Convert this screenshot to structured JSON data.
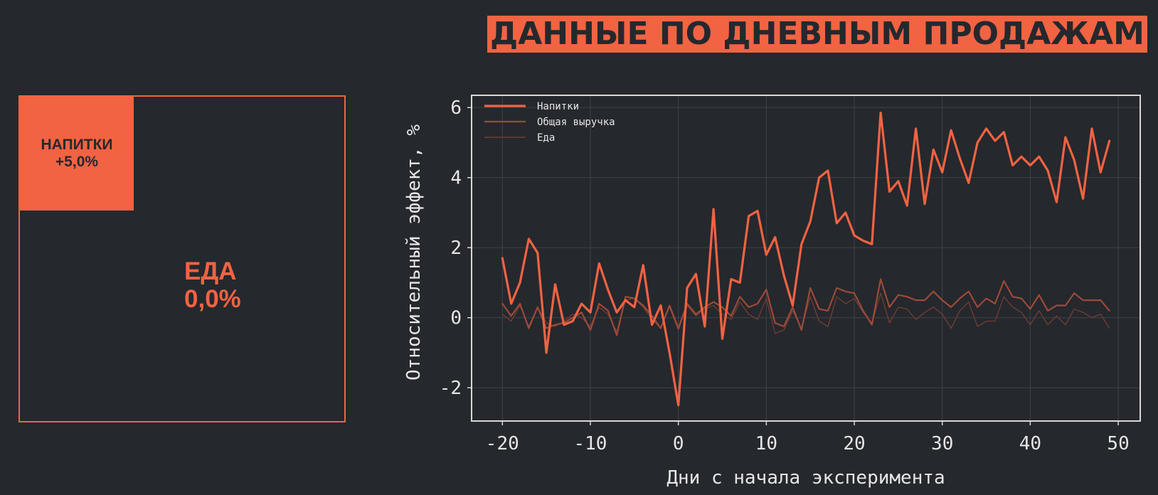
{
  "title": "ДАННЫЕ ПО ДНЕВНЫМ ПРОДАЖАМ",
  "treemap": {
    "small_tile": {
      "label": "НАПИТКИ",
      "value": "+5,0%"
    },
    "big_tile": {
      "label": "ЕДА",
      "value": "0,0%"
    }
  },
  "colors": {
    "background": "#25282d",
    "accent": "#f26342",
    "series_mid": "#9c4a39",
    "series_dim": "#6e3d33",
    "grid": "#4a4d52",
    "axes": "#d8d8d8",
    "text_light": "#e6e6e6"
  },
  "chart_data": {
    "type": "line",
    "xlabel": "Дни с начала эксперимента",
    "ylabel": "Относительный эффект, %",
    "xlim": [
      -23.5,
      52.5
    ],
    "ylim": [
      -2.95,
      6.35
    ],
    "xticks": [
      -20,
      -10,
      0,
      10,
      20,
      30,
      40,
      50
    ],
    "yticks": [
      -2,
      0,
      2,
      4,
      6
    ],
    "grid": true,
    "legend_position": "top-left",
    "x": [
      -20,
      -19,
      -18,
      -17,
      -16,
      -15,
      -14,
      -13,
      -12,
      -11,
      -10,
      -9,
      -8,
      -7,
      -6,
      -5,
      -4,
      -3,
      -2,
      -1,
      0,
      1,
      2,
      3,
      4,
      5,
      6,
      7,
      8,
      9,
      10,
      11,
      12,
      13,
      14,
      15,
      16,
      17,
      18,
      19,
      20,
      21,
      22,
      23,
      24,
      25,
      26,
      27,
      28,
      29,
      30,
      31,
      32,
      33,
      34,
      35,
      36,
      37,
      38,
      39,
      40,
      41,
      42,
      43,
      44,
      45,
      46,
      47,
      48,
      49
    ],
    "series": [
      {
        "name": "Напитки",
        "values": [
          1.7,
          0.4,
          1.0,
          2.25,
          1.85,
          -1.0,
          0.95,
          -0.2,
          -0.1,
          0.4,
          0.15,
          1.55,
          0.8,
          0.15,
          0.5,
          0.3,
          1.5,
          -0.2,
          0.35,
          -1.0,
          -2.5,
          0.85,
          1.25,
          -0.25,
          3.1,
          -0.6,
          1.1,
          1.0,
          2.9,
          3.05,
          1.8,
          2.3,
          1.2,
          0.35,
          2.1,
          2.75,
          4.0,
          4.2,
          2.7,
          3.0,
          2.35,
          2.2,
          2.1,
          5.85,
          3.6,
          3.9,
          3.2,
          5.4,
          3.25,
          4.8,
          4.15,
          5.35,
          4.55,
          3.85,
          5.0,
          5.4,
          5.05,
          5.3,
          4.35,
          4.6,
          4.35,
          4.6,
          4.2,
          3.3,
          5.15,
          4.5,
          3.4,
          5.4,
          4.15,
          5.05
        ]
      },
      {
        "name": "Общая выручка",
        "values": [
          0.4,
          0.05,
          0.4,
          -0.3,
          0.3,
          -0.3,
          -0.2,
          -0.15,
          0.0,
          0.15,
          -0.35,
          0.4,
          0.2,
          -0.5,
          0.6,
          0.55,
          0.35,
          0.05,
          -0.3,
          0.35,
          -0.3,
          0.4,
          0.1,
          0.3,
          0.45,
          0.3,
          0.05,
          0.6,
          0.3,
          0.4,
          0.8,
          -0.15,
          -0.25,
          0.3,
          -0.35,
          0.85,
          0.25,
          0.2,
          0.85,
          0.75,
          0.7,
          0.2,
          -0.2,
          1.1,
          0.3,
          0.65,
          0.6,
          0.5,
          0.5,
          0.75,
          0.5,
          0.3,
          0.55,
          0.75,
          0.3,
          0.55,
          0.4,
          1.05,
          0.6,
          0.55,
          0.25,
          0.65,
          0.2,
          0.35,
          0.35,
          0.7,
          0.5,
          0.5,
          0.5,
          0.2
        ]
      },
      {
        "name": "Еда",
        "values": [
          0.1,
          -0.1,
          0.35,
          -0.25,
          0.3,
          -0.15,
          -0.25,
          -0.1,
          0.1,
          0.0,
          -0.25,
          0.3,
          0.1,
          -0.4,
          0.5,
          0.55,
          0.3,
          -0.05,
          -0.3,
          0.3,
          -0.35,
          0.35,
          0.05,
          0.25,
          0.35,
          0.1,
          -0.05,
          0.45,
          0.1,
          -0.05,
          0.55,
          -0.45,
          -0.35,
          0.2,
          -0.3,
          0.6,
          -0.1,
          -0.25,
          0.6,
          0.4,
          0.55,
          0.15,
          -0.15,
          0.7,
          -0.15,
          0.3,
          0.25,
          -0.05,
          0.15,
          0.3,
          0.1,
          -0.3,
          0.2,
          0.45,
          -0.25,
          -0.1,
          -0.1,
          0.6,
          0.3,
          0.15,
          -0.2,
          0.2,
          -0.2,
          0.05,
          -0.2,
          0.25,
          0.15,
          0.0,
          0.1,
          -0.3
        ]
      }
    ]
  }
}
